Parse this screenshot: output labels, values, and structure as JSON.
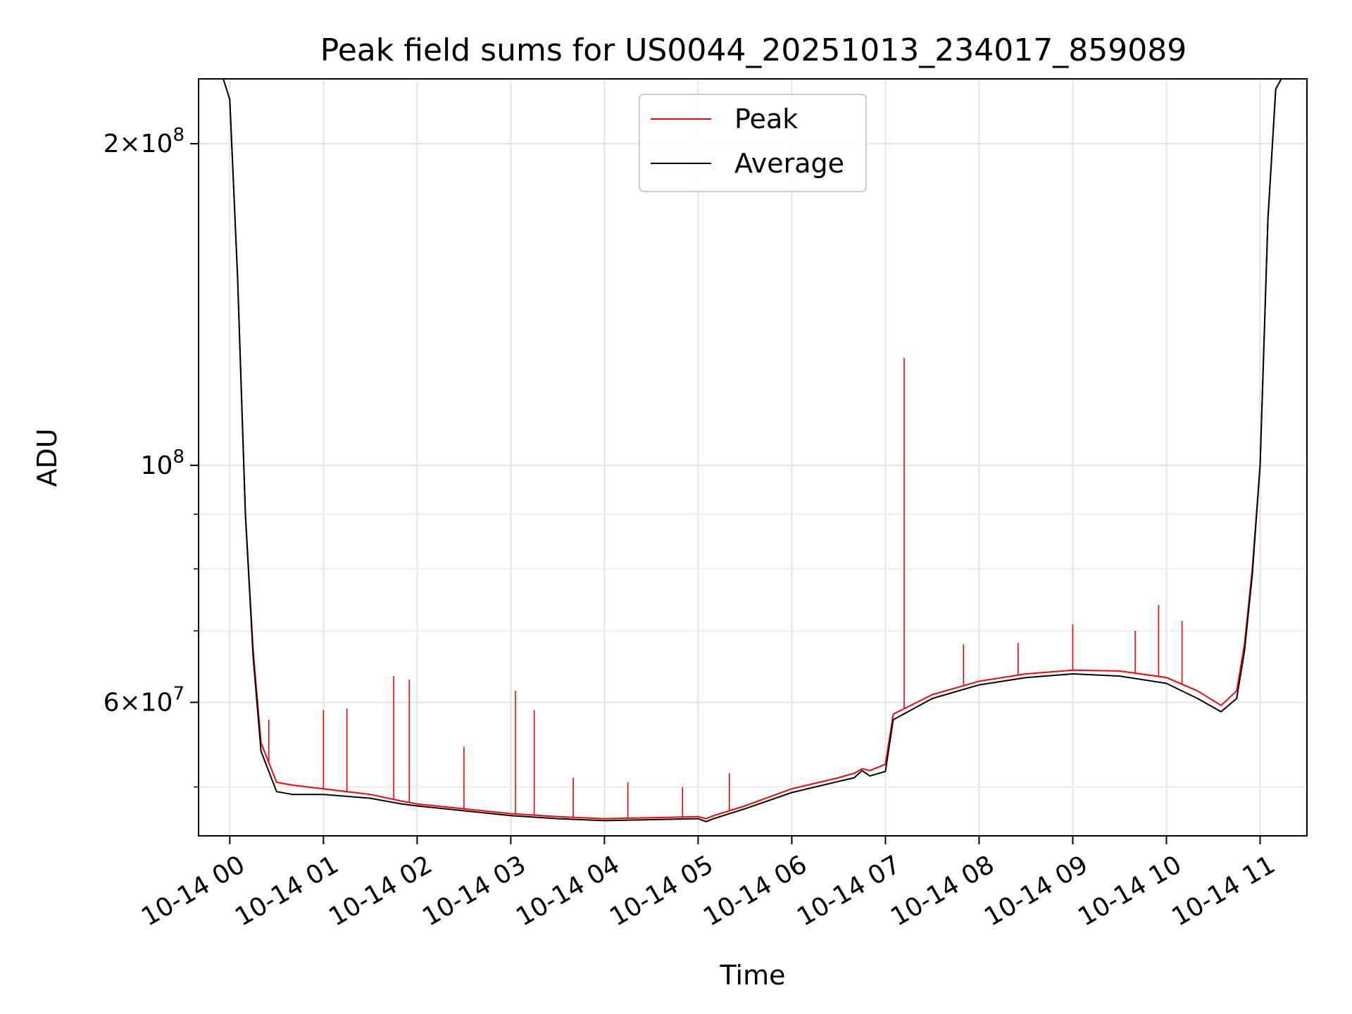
{
  "chart_data": {
    "type": "line",
    "title": "Peak field sums for US0044_20251013_234017_859089",
    "xlabel": "Time",
    "ylabel": "ADU",
    "yscale": "log",
    "ylim": [
      45000000,
      230000000
    ],
    "xlim": [
      "2025-10-13 23:40",
      "2025-10-14 11:30"
    ],
    "grid": true,
    "legend": {
      "position": "top-center",
      "entries": [
        "Peak",
        "Average"
      ]
    },
    "x_ticks": [
      {
        "t": "2025-10-14 00:00",
        "label": "10-14 00"
      },
      {
        "t": "2025-10-14 01:00",
        "label": "10-14 01"
      },
      {
        "t": "2025-10-14 02:00",
        "label": "10-14 02"
      },
      {
        "t": "2025-10-14 03:00",
        "label": "10-14 03"
      },
      {
        "t": "2025-10-14 04:00",
        "label": "10-14 04"
      },
      {
        "t": "2025-10-14 05:00",
        "label": "10-14 05"
      },
      {
        "t": "2025-10-14 06:00",
        "label": "10-14 06"
      },
      {
        "t": "2025-10-14 07:00",
        "label": "10-14 07"
      },
      {
        "t": "2025-10-14 08:00",
        "label": "10-14 08"
      },
      {
        "t": "2025-10-14 09:00",
        "label": "10-14 09"
      },
      {
        "t": "2025-10-14 10:00",
        "label": "10-14 10"
      },
      {
        "t": "2025-10-14 11:00",
        "label": "10-14 11"
      }
    ],
    "y_ticks": [
      {
        "value": 60000000,
        "mant": "6",
        "exp": "7"
      },
      {
        "value": 100000000,
        "mant": "",
        "exp": "8"
      },
      {
        "value": 200000000,
        "mant": "2",
        "exp": "8"
      }
    ],
    "y_minor_ticks": [
      50000000,
      70000000,
      80000000,
      90000000
    ],
    "series": [
      {
        "name": "Peak",
        "color": "#ff0000",
        "x": [
          "2025-10-13 23:50",
          "2025-10-13 23:55",
          "2025-10-14 00:00",
          "2025-10-14 00:05",
          "2025-10-14 00:10",
          "2025-10-14 00:15",
          "2025-10-14 00:20",
          "2025-10-14 00:30",
          "2025-10-14 00:40",
          "2025-10-14 00:50",
          "2025-10-14 01:00",
          "2025-10-14 01:15",
          "2025-10-14 01:30",
          "2025-10-14 01:50",
          "2025-10-14 02:00",
          "2025-10-14 02:30",
          "2025-10-14 03:00",
          "2025-10-14 03:30",
          "2025-10-14 04:00",
          "2025-10-14 04:30",
          "2025-10-14 05:00",
          "2025-10-14 05:05",
          "2025-10-14 05:10",
          "2025-10-14 05:30",
          "2025-10-14 06:00",
          "2025-10-14 06:30",
          "2025-10-14 06:40",
          "2025-10-14 06:45",
          "2025-10-14 06:50",
          "2025-10-14 07:00",
          "2025-10-14 07:05",
          "2025-10-14 07:30",
          "2025-10-14 08:00",
          "2025-10-14 08:30",
          "2025-10-14 09:00",
          "2025-10-14 09:30",
          "2025-10-14 10:00",
          "2025-10-14 10:20",
          "2025-10-14 10:35",
          "2025-10-14 10:45",
          "2025-10-14 10:50",
          "2025-10-14 10:55",
          "2025-10-14 11:00",
          "2025-10-14 11:05",
          "2025-10-14 11:10",
          "2025-10-14 11:15"
        ],
        "values": [
          232000000,
          232000000,
          220000000,
          150000000,
          90000000,
          67000000,
          55000000,
          50500000,
          50200000,
          50000000,
          49800000,
          49500000,
          49200000,
          48500000,
          48200000,
          47700000,
          47200000,
          46900000,
          46700000,
          46800000,
          46900000,
          46700000,
          47000000,
          48000000,
          49800000,
          51000000,
          51500000,
          52000000,
          51800000,
          52500000,
          58500000,
          61000000,
          62800000,
          63800000,
          64300000,
          64200000,
          63300000,
          61500000,
          59600000,
          61500000,
          68000000,
          80000000,
          100000000,
          170000000,
          225000000,
          232000000
        ]
      },
      {
        "name": "Average",
        "color": "#000000",
        "x": [
          "2025-10-13 23:50",
          "2025-10-13 23:55",
          "2025-10-14 00:00",
          "2025-10-14 00:05",
          "2025-10-14 00:10",
          "2025-10-14 00:15",
          "2025-10-14 00:20",
          "2025-10-14 00:30",
          "2025-10-14 00:40",
          "2025-10-14 00:50",
          "2025-10-14 01:00",
          "2025-10-14 01:15",
          "2025-10-14 01:30",
          "2025-10-14 01:50",
          "2025-10-14 02:00",
          "2025-10-14 02:30",
          "2025-10-14 03:00",
          "2025-10-14 03:30",
          "2025-10-14 04:00",
          "2025-10-14 04:30",
          "2025-10-14 05:00",
          "2025-10-14 05:05",
          "2025-10-14 05:10",
          "2025-10-14 05:30",
          "2025-10-14 06:00",
          "2025-10-14 06:30",
          "2025-10-14 06:40",
          "2025-10-14 06:45",
          "2025-10-14 06:50",
          "2025-10-14 07:00",
          "2025-10-14 07:05",
          "2025-10-14 07:30",
          "2025-10-14 08:00",
          "2025-10-14 08:30",
          "2025-10-14 09:00",
          "2025-10-14 09:30",
          "2025-10-14 10:00",
          "2025-10-14 10:20",
          "2025-10-14 10:35",
          "2025-10-14 10:45",
          "2025-10-14 10:50",
          "2025-10-14 10:55",
          "2025-10-14 11:00",
          "2025-10-14 11:05",
          "2025-10-14 11:10",
          "2025-10-14 11:15"
        ],
        "values": [
          232000000,
          232000000,
          220000000,
          150000000,
          90000000,
          66000000,
          54000000,
          49500000,
          49200000,
          49200000,
          49200000,
          49000000,
          48800000,
          48200000,
          48000000,
          47500000,
          47000000,
          46700000,
          46500000,
          46600000,
          46700000,
          46400000,
          46700000,
          47700000,
          49400000,
          50600000,
          51000000,
          51800000,
          51200000,
          51700000,
          57800000,
          60500000,
          62300000,
          63300000,
          63800000,
          63500000,
          62500000,
          60500000,
          58800000,
          60500000,
          67000000,
          79000000,
          100000000,
          170000000,
          225000000,
          232000000
        ]
      }
    ],
    "spikes": [
      {
        "t": "2025-10-14 00:25",
        "value": 57800000
      },
      {
        "t": "2025-10-14 01:00",
        "value": 59000000
      },
      {
        "t": "2025-10-14 01:15",
        "value": 59200000
      },
      {
        "t": "2025-10-14 01:45",
        "value": 63500000
      },
      {
        "t": "2025-10-14 01:55",
        "value": 63000000
      },
      {
        "t": "2025-10-14 02:30",
        "value": 54500000
      },
      {
        "t": "2025-10-14 03:03",
        "value": 61500000
      },
      {
        "t": "2025-10-14 03:15",
        "value": 59000000
      },
      {
        "t": "2025-10-14 03:40",
        "value": 51000000
      },
      {
        "t": "2025-10-14 04:15",
        "value": 50500000
      },
      {
        "t": "2025-10-14 04:50",
        "value": 50000000
      },
      {
        "t": "2025-10-14 05:20",
        "value": 51500000
      },
      {
        "t": "2025-10-14 07:12",
        "value": 126000000
      },
      {
        "t": "2025-10-14 07:50",
        "value": 68000000
      },
      {
        "t": "2025-10-14 08:25",
        "value": 68200000
      },
      {
        "t": "2025-10-14 09:00",
        "value": 71000000
      },
      {
        "t": "2025-10-14 09:40",
        "value": 70000000
      },
      {
        "t": "2025-10-14 09:55",
        "value": 74000000
      },
      {
        "t": "2025-10-14 10:10",
        "value": 71500000
      }
    ]
  }
}
